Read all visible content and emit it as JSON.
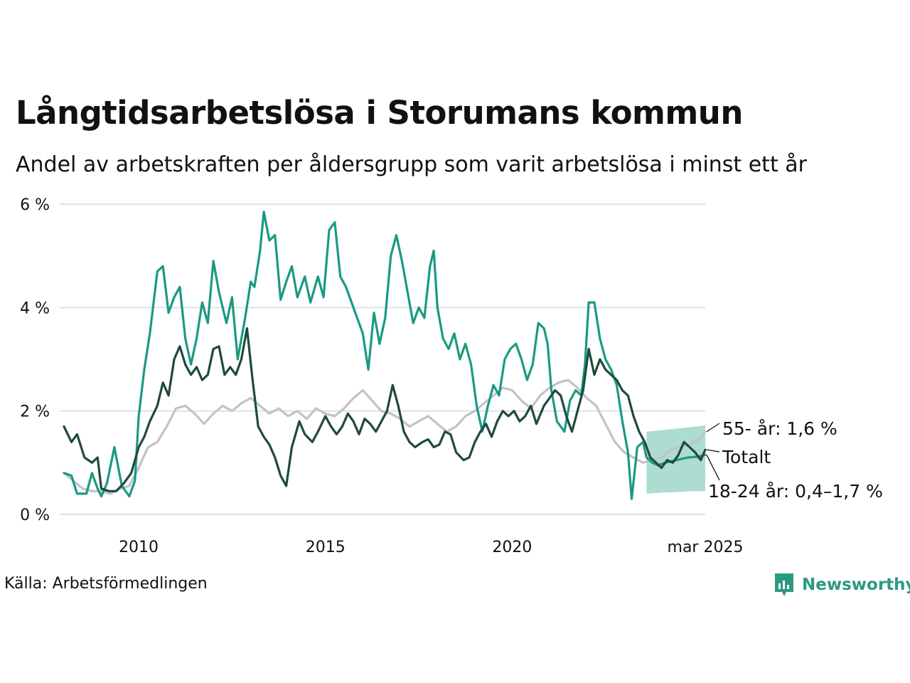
{
  "title": "Långtidsarbetslösa i Storumans kommun",
  "subtitle": "Andel av arbetskraften per åldersgrupp som varit arbetslösa i minst ett år",
  "source": "Källa: Arbetsförmedlingen",
  "logo": {
    "text": "Newsworthy",
    "icon": "bar-chart-speech-bubble-icon"
  },
  "colors": {
    "young": "#1a9a82",
    "total": "#1f4a3c",
    "old": "#c3c1cb",
    "forecast_band": "#9fd6c8",
    "grid": "#e1e1e6"
  },
  "chart_data": {
    "type": "line",
    "ylim": [
      0,
      6
    ],
    "y_ticks": [
      0,
      2,
      4,
      6
    ],
    "y_tick_labels": [
      "0 %",
      "2 %",
      "4 %",
      "6 %"
    ],
    "x_range": [
      2008.0,
      2025.17
    ],
    "x_ticks": [
      2010,
      2015,
      2020,
      2025.17
    ],
    "x_tick_labels": [
      "2010",
      "2015",
      "2020",
      "mar 2025"
    ],
    "series": [
      {
        "key": "old",
        "name": "55- år",
        "points": [
          [
            2008.0,
            0.8
          ],
          [
            2008.25,
            0.65
          ],
          [
            2008.5,
            0.5
          ],
          [
            2008.75,
            0.45
          ],
          [
            2009.0,
            0.45
          ],
          [
            2009.25,
            0.4
          ],
          [
            2009.5,
            0.5
          ],
          [
            2009.75,
            0.55
          ],
          [
            2010.0,
            0.9
          ],
          [
            2010.25,
            1.3
          ],
          [
            2010.5,
            1.4
          ],
          [
            2010.75,
            1.7
          ],
          [
            2011.0,
            2.05
          ],
          [
            2011.25,
            2.1
          ],
          [
            2011.5,
            1.95
          ],
          [
            2011.75,
            1.75
          ],
          [
            2012.0,
            1.95
          ],
          [
            2012.25,
            2.1
          ],
          [
            2012.5,
            2.0
          ],
          [
            2012.75,
            2.15
          ],
          [
            2013.0,
            2.25
          ],
          [
            2013.25,
            2.1
          ],
          [
            2013.5,
            1.95
          ],
          [
            2013.75,
            2.05
          ],
          [
            2014.0,
            1.9
          ],
          [
            2014.25,
            2.0
          ],
          [
            2014.5,
            1.85
          ],
          [
            2014.75,
            2.05
          ],
          [
            2015.0,
            1.95
          ],
          [
            2015.25,
            1.9
          ],
          [
            2015.5,
            2.05
          ],
          [
            2015.75,
            2.25
          ],
          [
            2016.0,
            2.4
          ],
          [
            2016.25,
            2.2
          ],
          [
            2016.5,
            2.0
          ],
          [
            2016.75,
            1.95
          ],
          [
            2017.0,
            1.85
          ],
          [
            2017.25,
            1.7
          ],
          [
            2017.5,
            1.8
          ],
          [
            2017.75,
            1.9
          ],
          [
            2018.0,
            1.75
          ],
          [
            2018.25,
            1.6
          ],
          [
            2018.5,
            1.7
          ],
          [
            2018.75,
            1.9
          ],
          [
            2019.0,
            2.0
          ],
          [
            2019.25,
            2.15
          ],
          [
            2019.5,
            2.3
          ],
          [
            2019.75,
            2.45
          ],
          [
            2020.0,
            2.4
          ],
          [
            2020.25,
            2.2
          ],
          [
            2020.5,
            2.05
          ],
          [
            2020.75,
            2.3
          ],
          [
            2021.0,
            2.45
          ],
          [
            2021.25,
            2.55
          ],
          [
            2021.5,
            2.6
          ],
          [
            2021.75,
            2.45
          ],
          [
            2022.0,
            2.25
          ],
          [
            2022.25,
            2.1
          ],
          [
            2022.5,
            1.75
          ],
          [
            2022.75,
            1.4
          ],
          [
            2023.0,
            1.2
          ],
          [
            2023.25,
            1.1
          ],
          [
            2023.5,
            1.0
          ],
          [
            2023.75,
            1.05
          ],
          [
            2024.0,
            1.1
          ],
          [
            2024.25,
            1.25
          ],
          [
            2024.5,
            1.3
          ],
          [
            2024.75,
            1.35
          ],
          [
            2025.0,
            1.45
          ],
          [
            2025.17,
            1.6
          ]
        ]
      },
      {
        "key": "young",
        "name": "18-24 år",
        "points": [
          [
            2008.0,
            0.8
          ],
          [
            2008.2,
            0.75
          ],
          [
            2008.35,
            0.4
          ],
          [
            2008.6,
            0.4
          ],
          [
            2008.75,
            0.8
          ],
          [
            2008.9,
            0.5
          ],
          [
            2009.0,
            0.35
          ],
          [
            2009.15,
            0.6
          ],
          [
            2009.35,
            1.3
          ],
          [
            2009.55,
            0.55
          ],
          [
            2009.75,
            0.35
          ],
          [
            2009.9,
            0.65
          ],
          [
            2010.0,
            1.9
          ],
          [
            2010.15,
            2.8
          ],
          [
            2010.3,
            3.5
          ],
          [
            2010.5,
            4.7
          ],
          [
            2010.65,
            4.8
          ],
          [
            2010.8,
            3.9
          ],
          [
            2010.95,
            4.2
          ],
          [
            2011.1,
            4.4
          ],
          [
            2011.25,
            3.4
          ],
          [
            2011.4,
            2.9
          ],
          [
            2011.55,
            3.4
          ],
          [
            2011.7,
            4.1
          ],
          [
            2011.85,
            3.7
          ],
          [
            2012.0,
            4.9
          ],
          [
            2012.15,
            4.3
          ],
          [
            2012.35,
            3.7
          ],
          [
            2012.5,
            4.2
          ],
          [
            2012.65,
            3.0
          ],
          [
            2012.85,
            3.8
          ],
          [
            2013.0,
            4.5
          ],
          [
            2013.1,
            4.4
          ],
          [
            2013.25,
            5.1
          ],
          [
            2013.35,
            5.85
          ],
          [
            2013.5,
            5.3
          ],
          [
            2013.65,
            5.4
          ],
          [
            2013.8,
            4.15
          ],
          [
            2013.95,
            4.5
          ],
          [
            2014.1,
            4.8
          ],
          [
            2014.25,
            4.2
          ],
          [
            2014.45,
            4.6
          ],
          [
            2014.6,
            4.1
          ],
          [
            2014.8,
            4.6
          ],
          [
            2014.95,
            4.2
          ],
          [
            2015.1,
            5.5
          ],
          [
            2015.25,
            5.65
          ],
          [
            2015.4,
            4.6
          ],
          [
            2015.55,
            4.4
          ],
          [
            2015.7,
            4.1
          ],
          [
            2015.85,
            3.8
          ],
          [
            2016.0,
            3.5
          ],
          [
            2016.15,
            2.8
          ],
          [
            2016.3,
            3.9
          ],
          [
            2016.45,
            3.3
          ],
          [
            2016.6,
            3.8
          ],
          [
            2016.75,
            5.0
          ],
          [
            2016.9,
            5.4
          ],
          [
            2017.05,
            4.9
          ],
          [
            2017.2,
            4.3
          ],
          [
            2017.35,
            3.7
          ],
          [
            2017.5,
            4.0
          ],
          [
            2017.65,
            3.8
          ],
          [
            2017.8,
            4.8
          ],
          [
            2017.9,
            5.1
          ],
          [
            2018.0,
            4.0
          ],
          [
            2018.15,
            3.4
          ],
          [
            2018.3,
            3.2
          ],
          [
            2018.45,
            3.5
          ],
          [
            2018.6,
            3.0
          ],
          [
            2018.75,
            3.3
          ],
          [
            2018.9,
            2.9
          ],
          [
            2019.05,
            2.1
          ],
          [
            2019.2,
            1.6
          ],
          [
            2019.35,
            2.1
          ],
          [
            2019.5,
            2.5
          ],
          [
            2019.65,
            2.3
          ],
          [
            2019.8,
            3.0
          ],
          [
            2019.95,
            3.2
          ],
          [
            2020.1,
            3.3
          ],
          [
            2020.25,
            3.0
          ],
          [
            2020.4,
            2.6
          ],
          [
            2020.55,
            2.9
          ],
          [
            2020.7,
            3.7
          ],
          [
            2020.85,
            3.6
          ],
          [
            2020.95,
            3.3
          ],
          [
            2021.05,
            2.4
          ],
          [
            2021.2,
            1.8
          ],
          [
            2021.4,
            1.6
          ],
          [
            2021.55,
            2.2
          ],
          [
            2021.7,
            2.4
          ],
          [
            2021.85,
            2.3
          ],
          [
            2021.95,
            2.9
          ],
          [
            2022.05,
            4.1
          ],
          [
            2022.2,
            4.1
          ],
          [
            2022.35,
            3.4
          ],
          [
            2022.5,
            3.0
          ],
          [
            2022.65,
            2.8
          ],
          [
            2022.8,
            2.5
          ],
          [
            2022.95,
            1.8
          ],
          [
            2023.1,
            1.2
          ],
          [
            2023.2,
            0.3
          ],
          [
            2023.35,
            1.3
          ],
          [
            2023.5,
            1.4
          ],
          [
            2023.6,
            1.1
          ],
          [
            2023.75,
            1.0
          ],
          [
            2023.9,
            0.95
          ],
          [
            2024.1,
            1.0
          ],
          [
            2024.4,
            1.05
          ],
          [
            2024.7,
            1.1
          ],
          [
            2025.0,
            1.12
          ],
          [
            2025.17,
            1.15
          ]
        ]
      },
      {
        "key": "total",
        "name": "Totalt",
        "points": [
          [
            2008.0,
            1.7
          ],
          [
            2008.2,
            1.4
          ],
          [
            2008.35,
            1.55
          ],
          [
            2008.55,
            1.1
          ],
          [
            2008.75,
            1.0
          ],
          [
            2008.9,
            1.1
          ],
          [
            2009.0,
            0.5
          ],
          [
            2009.2,
            0.45
          ],
          [
            2009.4,
            0.45
          ],
          [
            2009.6,
            0.6
          ],
          [
            2009.8,
            0.8
          ],
          [
            2010.0,
            1.3
          ],
          [
            2010.15,
            1.5
          ],
          [
            2010.3,
            1.8
          ],
          [
            2010.5,
            2.1
          ],
          [
            2010.65,
            2.55
          ],
          [
            2010.8,
            2.3
          ],
          [
            2010.95,
            3.0
          ],
          [
            2011.1,
            3.25
          ],
          [
            2011.25,
            2.9
          ],
          [
            2011.4,
            2.7
          ],
          [
            2011.55,
            2.85
          ],
          [
            2011.7,
            2.6
          ],
          [
            2011.85,
            2.7
          ],
          [
            2012.0,
            3.2
          ],
          [
            2012.15,
            3.25
          ],
          [
            2012.3,
            2.7
          ],
          [
            2012.45,
            2.85
          ],
          [
            2012.6,
            2.7
          ],
          [
            2012.75,
            3.0
          ],
          [
            2012.9,
            3.6
          ],
          [
            2013.05,
            2.6
          ],
          [
            2013.2,
            1.7
          ],
          [
            2013.35,
            1.5
          ],
          [
            2013.5,
            1.35
          ],
          [
            2013.65,
            1.1
          ],
          [
            2013.8,
            0.75
          ],
          [
            2013.95,
            0.55
          ],
          [
            2014.1,
            1.3
          ],
          [
            2014.3,
            1.8
          ],
          [
            2014.45,
            1.55
          ],
          [
            2014.65,
            1.4
          ],
          [
            2014.8,
            1.6
          ],
          [
            2015.0,
            1.9
          ],
          [
            2015.15,
            1.7
          ],
          [
            2015.3,
            1.55
          ],
          [
            2015.45,
            1.7
          ],
          [
            2015.6,
            1.95
          ],
          [
            2015.75,
            1.8
          ],
          [
            2015.9,
            1.55
          ],
          [
            2016.05,
            1.85
          ],
          [
            2016.2,
            1.75
          ],
          [
            2016.35,
            1.6
          ],
          [
            2016.5,
            1.8
          ],
          [
            2016.65,
            2.0
          ],
          [
            2016.8,
            2.5
          ],
          [
            2016.95,
            2.1
          ],
          [
            2017.1,
            1.6
          ],
          [
            2017.25,
            1.4
          ],
          [
            2017.4,
            1.3
          ],
          [
            2017.6,
            1.4
          ],
          [
            2017.75,
            1.45
          ],
          [
            2017.9,
            1.3
          ],
          [
            2018.05,
            1.35
          ],
          [
            2018.2,
            1.6
          ],
          [
            2018.35,
            1.55
          ],
          [
            2018.5,
            1.2
          ],
          [
            2018.7,
            1.05
          ],
          [
            2018.85,
            1.1
          ],
          [
            2019.0,
            1.4
          ],
          [
            2019.15,
            1.6
          ],
          [
            2019.3,
            1.75
          ],
          [
            2019.45,
            1.5
          ],
          [
            2019.6,
            1.8
          ],
          [
            2019.75,
            2.0
          ],
          [
            2019.9,
            1.9
          ],
          [
            2020.05,
            2.0
          ],
          [
            2020.2,
            1.8
          ],
          [
            2020.35,
            1.9
          ],
          [
            2020.5,
            2.1
          ],
          [
            2020.65,
            1.75
          ],
          [
            2020.85,
            2.1
          ],
          [
            2021.0,
            2.25
          ],
          [
            2021.15,
            2.4
          ],
          [
            2021.3,
            2.3
          ],
          [
            2021.45,
            1.9
          ],
          [
            2021.6,
            1.6
          ],
          [
            2021.75,
            2.0
          ],
          [
            2021.9,
            2.4
          ],
          [
            2022.05,
            3.2
          ],
          [
            2022.2,
            2.7
          ],
          [
            2022.35,
            3.0
          ],
          [
            2022.5,
            2.8
          ],
          [
            2022.65,
            2.7
          ],
          [
            2022.8,
            2.6
          ],
          [
            2022.95,
            2.4
          ],
          [
            2023.1,
            2.3
          ],
          [
            2023.25,
            1.9
          ],
          [
            2023.4,
            1.6
          ],
          [
            2023.55,
            1.4
          ],
          [
            2023.7,
            1.1
          ],
          [
            2023.85,
            1.0
          ],
          [
            2024.0,
            0.9
          ],
          [
            2024.15,
            1.05
          ],
          [
            2024.3,
            1.0
          ],
          [
            2024.45,
            1.15
          ],
          [
            2024.6,
            1.4
          ],
          [
            2024.75,
            1.3
          ],
          [
            2024.9,
            1.2
          ],
          [
            2025.05,
            1.05
          ],
          [
            2025.17,
            1.25
          ]
        ]
      }
    ],
    "forecast_band": {
      "series": "18-24 år",
      "points": [
        [
          2023.6,
          0.4,
          1.6
        ],
        [
          2024.0,
          0.42,
          1.63
        ],
        [
          2024.4,
          0.43,
          1.66
        ],
        [
          2024.8,
          0.45,
          1.69
        ],
        [
          2025.17,
          0.45,
          1.72
        ]
      ]
    },
    "annotations": [
      {
        "text": "55- år: 1,6 %",
        "series": "old"
      },
      {
        "text": "Totalt",
        "series": "total"
      },
      {
        "text": "18-24 år: 0,4–1,7 %",
        "series": "young"
      }
    ]
  }
}
